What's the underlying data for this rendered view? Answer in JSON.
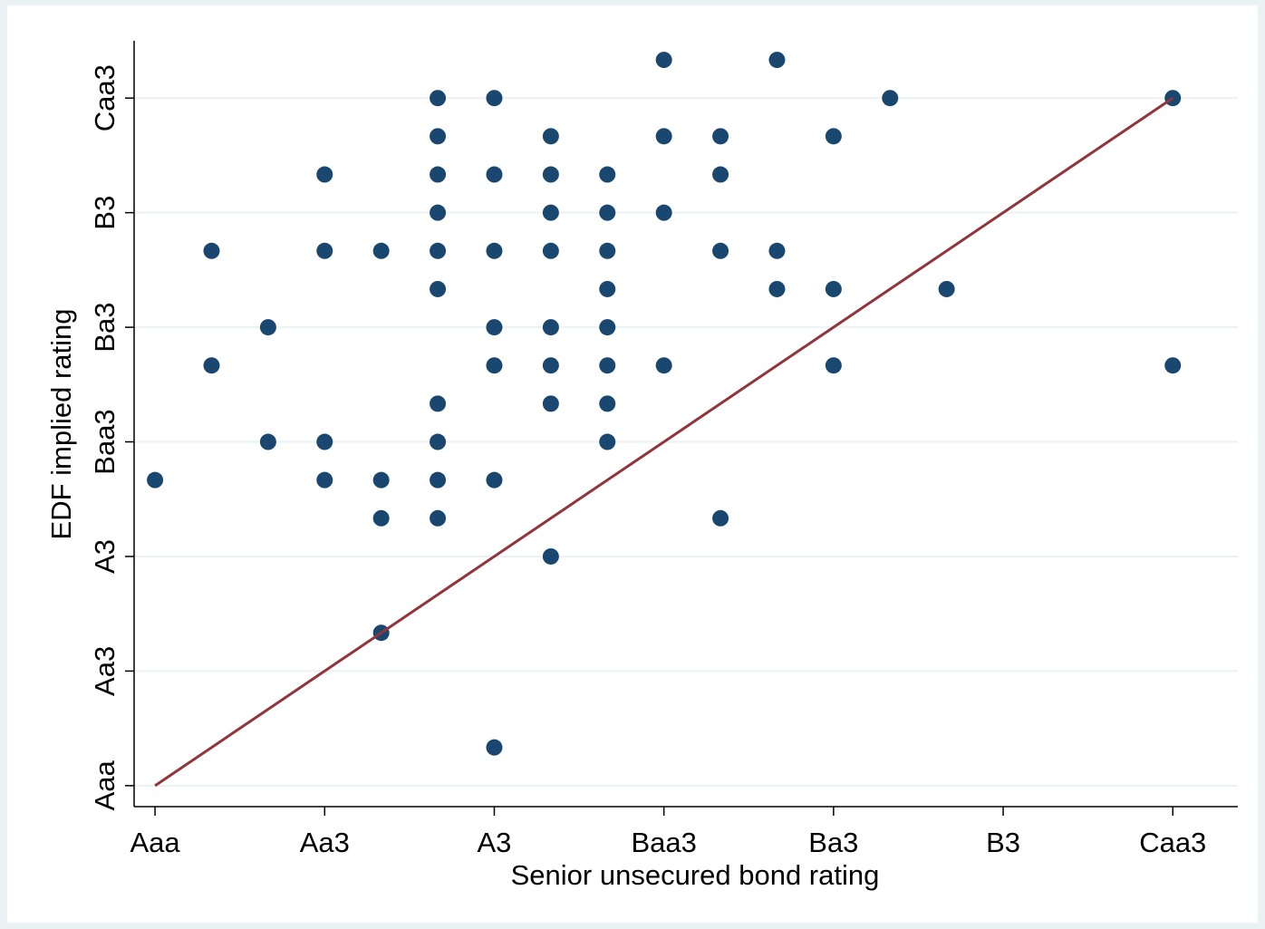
{
  "chart_data": {
    "type": "scatter",
    "x_label": "Senior unsecured bond rating",
    "y_label": "EDF implied rating",
    "x": [
      10,
      12,
      6,
      7,
      14,
      19,
      6,
      8,
      10,
      11,
      13,
      4,
      6,
      7,
      8,
      9,
      11,
      6,
      8,
      9,
      10,
      2,
      4,
      5,
      6,
      7,
      8,
      9,
      11,
      12,
      6,
      9,
      12,
      13,
      15,
      3,
      7,
      8,
      9,
      2,
      7,
      8,
      9,
      10,
      13,
      19,
      6,
      8,
      9,
      3,
      4,
      6,
      9,
      1,
      4,
      5,
      6,
      7,
      5,
      6,
      11,
      8,
      5,
      7
    ],
    "y": [
      20,
      20,
      19,
      19,
      19,
      19,
      18,
      18,
      18,
      18,
      18,
      17,
      17,
      17,
      17,
      17,
      17,
      16,
      16,
      16,
      16,
      15,
      15,
      15,
      15,
      15,
      15,
      15,
      15,
      15,
      14,
      14,
      14,
      14,
      14,
      13,
      13,
      13,
      13,
      12,
      12,
      12,
      12,
      12,
      12,
      12,
      11,
      11,
      11,
      10,
      10,
      10,
      10,
      9,
      9,
      9,
      9,
      9,
      8,
      8,
      8,
      7,
      5,
      2
    ],
    "color": "#1a476f",
    "fit_line": {
      "x": [
        1,
        19
      ],
      "y": [
        1,
        19
      ],
      "color": "#90353b"
    },
    "xlim": [
      0.63,
      20.15
    ],
    "ylim": [
      0.45,
      20.5
    ],
    "xticks": [
      {
        "value": 1,
        "label": "Aaa"
      },
      {
        "value": 4,
        "label": "Aa3"
      },
      {
        "value": 7,
        "label": "A3"
      },
      {
        "value": 10,
        "label": "Baa3"
      },
      {
        "value": 13,
        "label": "Ba3"
      },
      {
        "value": 16,
        "label": "B3"
      },
      {
        "value": 19,
        "label": "Caa3"
      }
    ],
    "yticks": [
      {
        "value": 1,
        "label": "Aaa"
      },
      {
        "value": 4,
        "label": "Aa3"
      },
      {
        "value": 7,
        "label": "A3"
      },
      {
        "value": 10,
        "label": "Baa3"
      },
      {
        "value": 13,
        "label": "Ba3"
      },
      {
        "value": 16,
        "label": "B3"
      },
      {
        "value": 19,
        "label": "Caa3"
      }
    ],
    "grid": true
  }
}
